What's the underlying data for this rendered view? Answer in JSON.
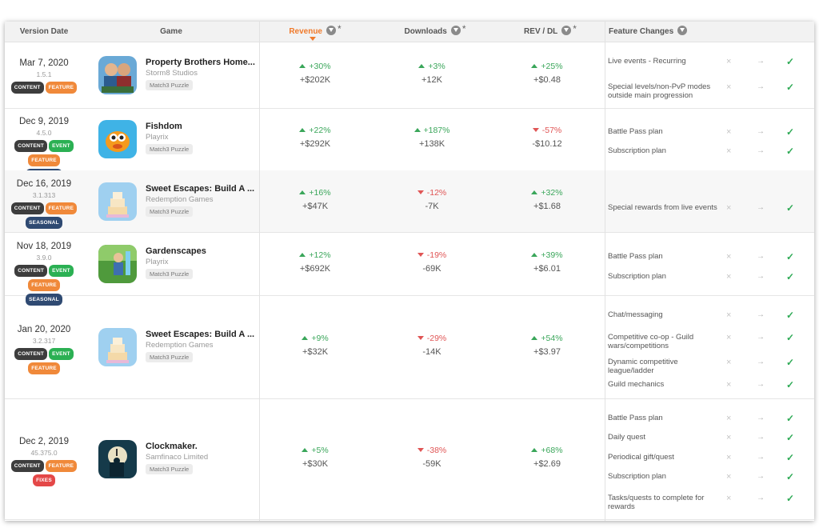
{
  "header": {
    "version_date": "Version Date",
    "game": "Game",
    "revenue": "Revenue",
    "downloads": "Downloads",
    "rev_dl": "REV / DL",
    "feature_changes": "Feature Changes",
    "asterisk": "*"
  },
  "symbols": {
    "cross": "×",
    "arrow": "→",
    "check": "✓"
  },
  "rows": [
    {
      "date": "Mar 7, 2020",
      "version": "1.5.1",
      "badges": [
        "CONTENT",
        "FEATURE"
      ],
      "game": "Property Brothers Home...",
      "developer": "Storm8 Studios",
      "genre": "Match3 Puzzle",
      "revenue": {
        "pct": "+30%",
        "value": "+$202K",
        "dir": "up"
      },
      "downloads": {
        "pct": "+3%",
        "value": "+12K",
        "dir": "up"
      },
      "rev_dl": {
        "pct": "+25%",
        "value": "+$0.48",
        "dir": "up"
      },
      "features": [
        "Live events - Recurring",
        "Special levels/non-PvP modes outside main progression"
      ]
    },
    {
      "date": "Dec 9, 2019",
      "version": "4.5.0",
      "badges": [
        "CONTENT",
        "EVENT",
        "FEATURE",
        "SEASONAL"
      ],
      "game": "Fishdom",
      "developer": "Playrix",
      "genre": "Match3 Puzzle",
      "revenue": {
        "pct": "+22%",
        "value": "+$292K",
        "dir": "up"
      },
      "downloads": {
        "pct": "+187%",
        "value": "+138K",
        "dir": "up"
      },
      "rev_dl": {
        "pct": "-57%",
        "value": "-$10.12",
        "dir": "down"
      },
      "features": [
        "Battle Pass plan",
        "Subscription plan"
      ]
    },
    {
      "date": "Dec 16, 2019",
      "version": "3.1.313",
      "badges": [
        "CONTENT",
        "FEATURE",
        "SEASONAL"
      ],
      "game": "Sweet Escapes: Build A ...",
      "developer": "Redemption Games",
      "genre": "Match3 Puzzle",
      "revenue": {
        "pct": "+16%",
        "value": "+$47K",
        "dir": "up"
      },
      "downloads": {
        "pct": "-12%",
        "value": "-7K",
        "dir": "down"
      },
      "rev_dl": {
        "pct": "+32%",
        "value": "+$1.68",
        "dir": "up"
      },
      "features": [
        "Special rewards from live events"
      ]
    },
    {
      "date": "Nov 18, 2019",
      "version": "3.9.0",
      "badges": [
        "CONTENT",
        "EVENT",
        "FEATURE",
        "SEASONAL"
      ],
      "game": "Gardenscapes",
      "developer": "Playrix",
      "genre": "Match3 Puzzle",
      "revenue": {
        "pct": "+12%",
        "value": "+$692K",
        "dir": "up"
      },
      "downloads": {
        "pct": "-19%",
        "value": "-69K",
        "dir": "down"
      },
      "rev_dl": {
        "pct": "+39%",
        "value": "+$6.01",
        "dir": "up"
      },
      "features": [
        "Battle Pass plan",
        "Subscription plan"
      ]
    },
    {
      "date": "Jan 20, 2020",
      "version": "3.2.317",
      "badges": [
        "CONTENT",
        "EVENT",
        "FEATURE"
      ],
      "game": "Sweet Escapes: Build A ...",
      "developer": "Redemption Games",
      "genre": "Match3 Puzzle",
      "revenue": {
        "pct": "+9%",
        "value": "+$32K",
        "dir": "up"
      },
      "downloads": {
        "pct": "-29%",
        "value": "-14K",
        "dir": "down"
      },
      "rev_dl": {
        "pct": "+54%",
        "value": "+$3.97",
        "dir": "up"
      },
      "features": [
        "Chat/messaging",
        "Competitive co-op - Guild wars/competitions",
        "Dynamic competitive league/ladder",
        "Guild mechanics"
      ]
    },
    {
      "date": "Dec 2, 2019",
      "version": "45.375.0",
      "badges": [
        "CONTENT",
        "FEATURE",
        "FIXES"
      ],
      "game": "Clockmaker.",
      "developer": "Samfinaco Limited",
      "genre": "Match3 Puzzle",
      "revenue": {
        "pct": "+5%",
        "value": "+$30K",
        "dir": "up"
      },
      "downloads": {
        "pct": "-38%",
        "value": "-59K",
        "dir": "down"
      },
      "rev_dl": {
        "pct": "+68%",
        "value": "+$2.69",
        "dir": "up"
      },
      "features": [
        "Battle Pass plan",
        "Daily quest",
        "Periodical gift/quest",
        "Subscription plan",
        "Tasks/quests to complete for rewards"
      ]
    }
  ]
}
